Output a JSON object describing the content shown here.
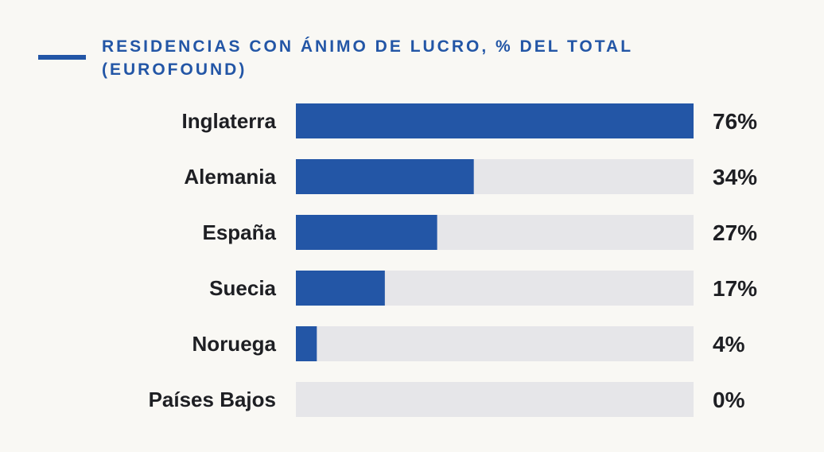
{
  "chart_data": {
    "type": "bar",
    "orientation": "horizontal",
    "title": "RESIDENCIAS CON ÁNIMO DE LUCRO, % DEL TOTAL (EUROFOUND)",
    "categories": [
      "Inglaterra",
      "Alemania",
      "España",
      "Suecia",
      "Noruega",
      "Países Bajos"
    ],
    "values": [
      76,
      34,
      27,
      17,
      4,
      0
    ],
    "value_labels": [
      "76%",
      "34%",
      "27%",
      "17%",
      "4%",
      "0%"
    ],
    "xlim": [
      0,
      76
    ],
    "grid": false,
    "colors": {
      "bar": "#2356a6",
      "track": "#e6e6e9",
      "text": "#1e1f23",
      "background": "#f9f8f4"
    }
  }
}
